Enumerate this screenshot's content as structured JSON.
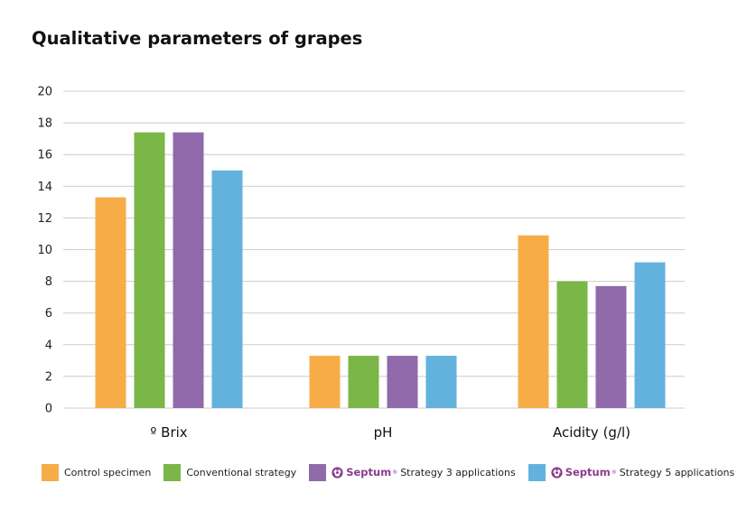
{
  "title": "Qualitative parameters of grapes",
  "colors": {
    "control": "#f6ad48",
    "conventional": "#7ab648",
    "septum3": "#906aaa",
    "septum5": "#63b2de",
    "grid": "#cccccc",
    "brand": "#8c3a8e"
  },
  "legend": {
    "brand_name": "Septum",
    "brand_icon": "septum-logo-icon",
    "items": [
      {
        "label": "Control specimen",
        "brand": false
      },
      {
        "label": "Conventional strategy",
        "brand": false
      },
      {
        "label": "Strategy 3 applications",
        "brand": true
      },
      {
        "label": "Strategy 5 applications",
        "brand": true
      }
    ]
  },
  "chart_data": {
    "type": "bar",
    "title": "Qualitative parameters of grapes",
    "categories": [
      "º Brix",
      "pH",
      "Acidity (g/l)"
    ],
    "series": [
      {
        "name": "Control specimen",
        "values": [
          13.3,
          3.3,
          10.9
        ]
      },
      {
        "name": "Conventional strategy",
        "values": [
          17.4,
          3.3,
          8.0
        ]
      },
      {
        "name": "Septum Strategy 3 applications",
        "values": [
          17.4,
          3.3,
          7.7
        ]
      },
      {
        "name": "Septum Strategy 5 applications",
        "values": [
          15.0,
          3.3,
          9.2
        ]
      }
    ],
    "ylim": [
      0,
      20
    ],
    "yticks": [
      0,
      2,
      4,
      6,
      8,
      10,
      12,
      14,
      16,
      18,
      20
    ],
    "grid": true,
    "legend_position": "bottom",
    "xlabel": "",
    "ylabel": ""
  }
}
